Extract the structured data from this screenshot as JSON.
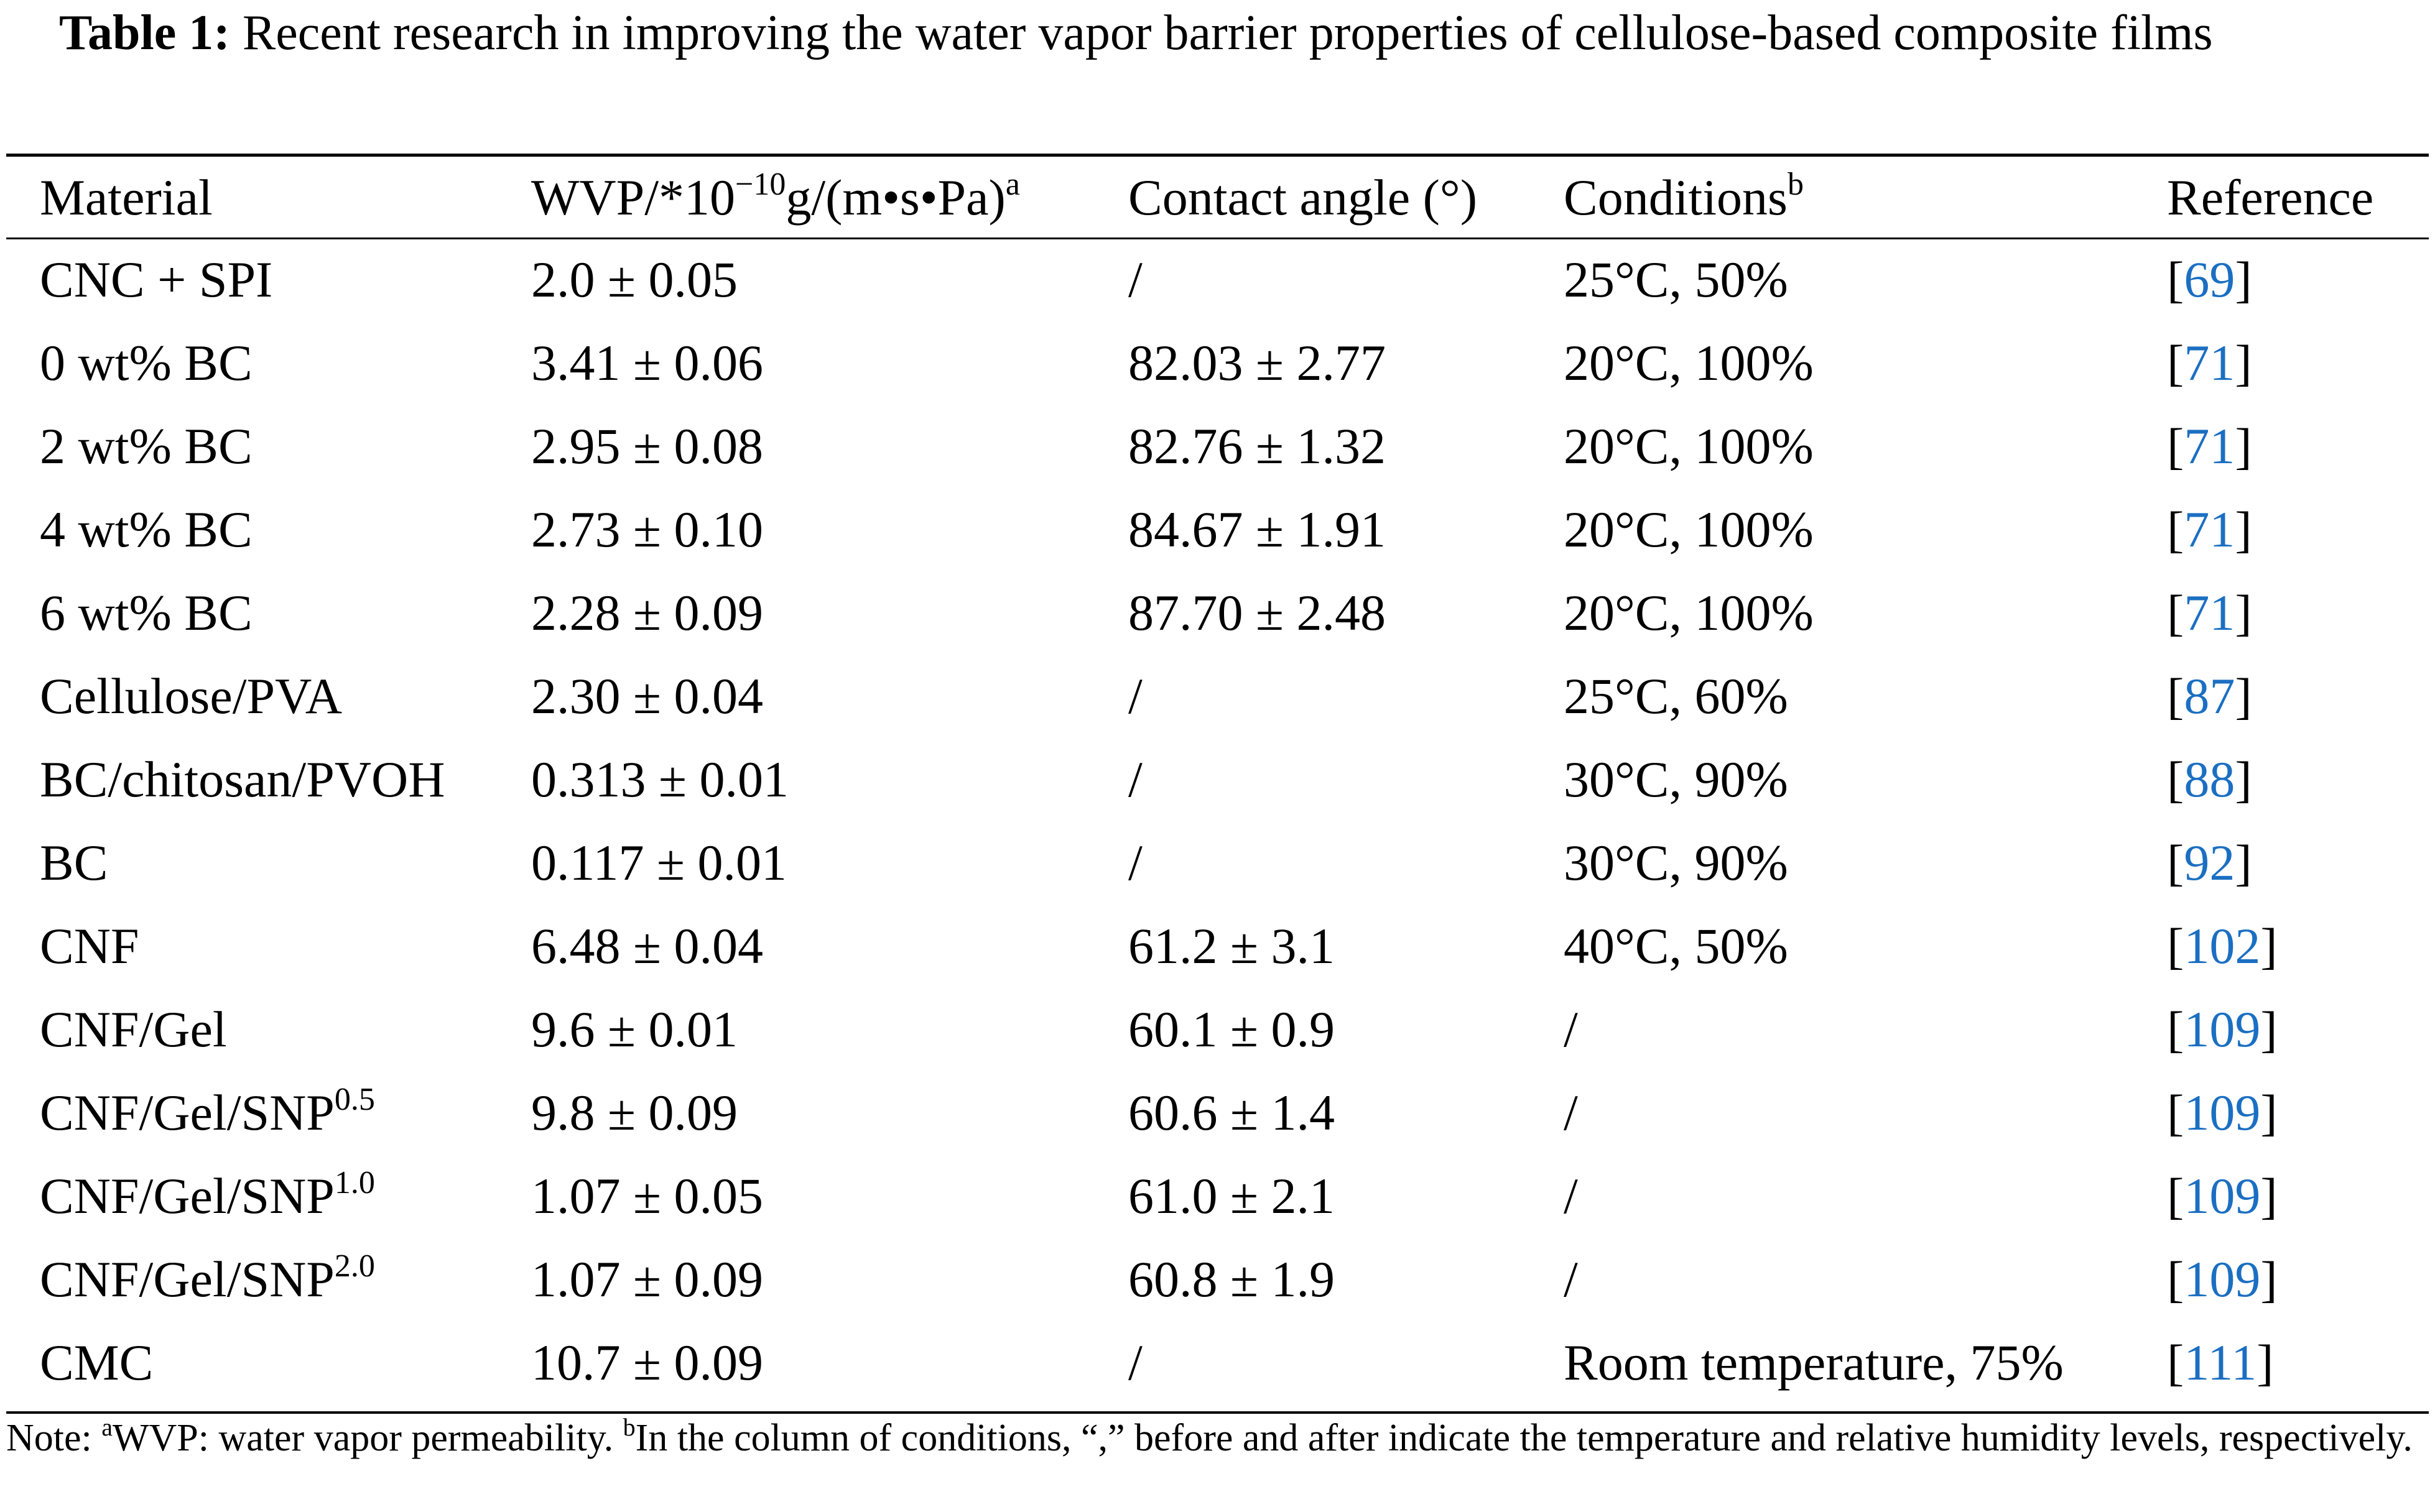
{
  "caption": {
    "label": "Table 1:",
    "text": "Recent research in improving the water vapor barrier properties of cellulose-based composite films"
  },
  "headers": {
    "material": "Material",
    "wvp": "WVP/*10",
    "wvp_exp": "−10",
    "wvp_unit": "g/(m•s•Pa)",
    "wvp_note": "a",
    "contact_angle": "Contact angle (°)",
    "conditions": "Conditions",
    "conditions_note": "b",
    "reference": "Reference"
  },
  "rows": [
    {
      "material": "CNC + SPI",
      "material_sup": "",
      "wvp": "2.0 ± 0.05",
      "angle": "/",
      "conditions": "25°C, 50%",
      "ref": "69"
    },
    {
      "material": "0 wt% BC",
      "material_sup": "",
      "wvp": "3.41 ± 0.06",
      "angle": "82.03 ± 2.77",
      "conditions": "20°C, 100%",
      "ref": "71"
    },
    {
      "material": "2 wt% BC",
      "material_sup": "",
      "wvp": "2.95 ± 0.08",
      "angle": "82.76 ± 1.32",
      "conditions": "20°C, 100%",
      "ref": "71"
    },
    {
      "material": "4 wt% BC",
      "material_sup": "",
      "wvp": "2.73 ± 0.10",
      "angle": "84.67 ± 1.91",
      "conditions": "20°C, 100%",
      "ref": "71"
    },
    {
      "material": "6 wt% BC",
      "material_sup": "",
      "wvp": "2.28 ± 0.09",
      "angle": "87.70 ± 2.48",
      "conditions": "20°C, 100%",
      "ref": "71"
    },
    {
      "material": "Cellulose/PVA",
      "material_sup": "",
      "wvp": "2.30 ± 0.04",
      "angle": "/",
      "conditions": "25°C, 60%",
      "ref": "87"
    },
    {
      "material": "BC/chitosan/PVOH",
      "material_sup": "",
      "wvp": "0.313 ± 0.01",
      "angle": "/",
      "conditions": "30°C, 90%",
      "ref": "88"
    },
    {
      "material": "BC",
      "material_sup": "",
      "wvp": "0.117 ± 0.01",
      "angle": "/",
      "conditions": "30°C, 90%",
      "ref": "92"
    },
    {
      "material": "CNF",
      "material_sup": "",
      "wvp": "6.48 ± 0.04",
      "angle": "61.2 ± 3.1",
      "conditions": "40°C, 50%",
      "ref": "102"
    },
    {
      "material": "CNF/Gel",
      "material_sup": "",
      "wvp": "9.6 ± 0.01",
      "angle": "60.1 ± 0.9",
      "conditions": "/",
      "ref": "109"
    },
    {
      "material": "CNF/Gel/SNP",
      "material_sup": "0.5",
      "wvp": "9.8 ± 0.09",
      "angle": "60.6 ± 1.4",
      "conditions": "/",
      "ref": "109"
    },
    {
      "material": "CNF/Gel/SNP",
      "material_sup": "1.0",
      "wvp": "1.07 ± 0.05",
      "angle": "61.0 ± 2.1",
      "conditions": "/",
      "ref": "109"
    },
    {
      "material": "CNF/Gel/SNP",
      "material_sup": "2.0",
      "wvp": "1.07 ± 0.09",
      "angle": "60.8 ± 1.9",
      "conditions": "/",
      "ref": "109"
    },
    {
      "material": "CMC",
      "material_sup": "",
      "wvp": "10.7 ± 0.09",
      "angle": "/",
      "conditions": "Room temperature, 75%",
      "ref": "111"
    }
  ],
  "ref_brackets": {
    "open": "[",
    "close": "]"
  },
  "note": {
    "prefix": "Note: ",
    "a_mark": "a",
    "a_text": "WVP: water vapor permeability. ",
    "b_mark": "b",
    "b_text": "In the column of conditions, “,” before and after indicate the temperature and relative humidity levels, respectively."
  },
  "colors": {
    "link": "#1b6fc2",
    "text": "#000000"
  }
}
